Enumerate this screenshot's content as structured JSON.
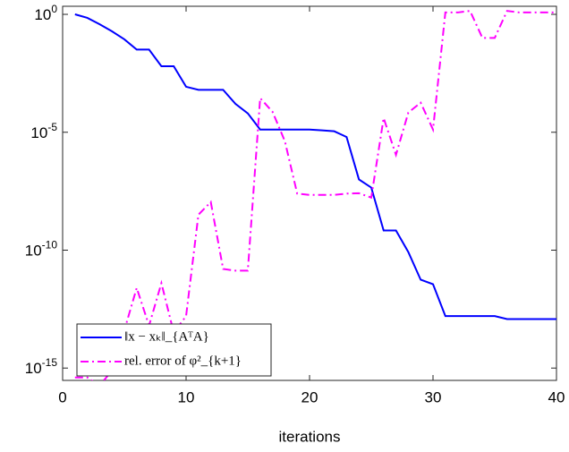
{
  "chart_data": {
    "type": "line",
    "xlabel": "iterations",
    "x": [
      1,
      2,
      3,
      4,
      5,
      6,
      7,
      8,
      9,
      10,
      11,
      12,
      13,
      14,
      15,
      16,
      17,
      18,
      19,
      20,
      21,
      22,
      23,
      24,
      25,
      26,
      27,
      28,
      29,
      30,
      31,
      32,
      33,
      34,
      35,
      36,
      37,
      38,
      39,
      40
    ],
    "series": [
      {
        "name": "‖x − xₖ‖_{AᵀA}",
        "color": "#0000ff",
        "linestyle": "solid",
        "values": [
          1,
          0.71,
          0.38,
          0.19,
          0.087,
          0.032,
          0.032,
          0.0063,
          0.0063,
          0.00085,
          0.00063,
          0.00063,
          0.00063,
          0.00016,
          6.3e-05,
          1.3e-05,
          1.3e-05,
          1.3e-05,
          1.3e-05,
          1.3e-05,
          1.2e-05,
          1.1e-05,
          6.3e-06,
          1e-07,
          4.5e-08,
          6.8e-10,
          6.8e-10,
          8.3e-11,
          5.6e-12,
          3.6e-12,
          1.6e-13,
          1.6e-13,
          1.6e-13,
          1.6e-13,
          1.6e-13,
          1.2e-13,
          1.2e-13,
          1.2e-13,
          1.2e-13,
          1.2e-13
        ]
      },
      {
        "name": "rel. error of φ²_{k+1}",
        "color": "#ff00ff",
        "linestyle": "dashdot",
        "values": [
          4e-16,
          4e-16,
          1.8e-16,
          7.9e-16,
          4e-14,
          2.5e-12,
          6.3e-14,
          4e-12,
          3.2e-14,
          1.6e-13,
          3.2e-09,
          1.1e-08,
          1.6e-11,
          1.35e-11,
          1.35e-11,
          0.00028,
          7.4e-05,
          4.2e-06,
          2.5e-08,
          2.2e-08,
          2.2e-08,
          2.2e-08,
          2.5e-08,
          2.6e-08,
          1.7e-08,
          4e-05,
          1.1e-06,
          6.8e-05,
          0.00018,
          1.3e-05,
          1.2,
          1.2,
          1.4,
          0.1,
          0.1,
          1.4,
          1.2,
          1.2,
          1.2,
          1.2
        ]
      }
    ],
    "xlim": [
      0,
      40
    ],
    "xticks": [
      0,
      10,
      20,
      30,
      40
    ],
    "ylim": [
      3e-16,
      2.2
    ],
    "yscale": "log",
    "yticks": [
      {
        "value": 1,
        "label": "10^0"
      },
      {
        "value": 1e-05,
        "label": "10^-5"
      },
      {
        "value": 1e-10,
        "label": "10^-10"
      },
      {
        "value": 1e-15,
        "label": "10^-15"
      }
    ],
    "legend": "lower left"
  }
}
